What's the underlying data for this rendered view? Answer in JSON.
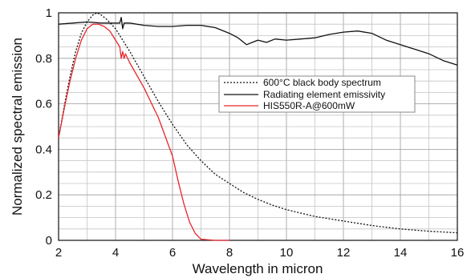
{
  "chart_data": {
    "type": "line",
    "xlabel": "Wavelength in micron",
    "ylabel": "Normalized spectral emission",
    "xlim": [
      2,
      16
    ],
    "ylim": [
      0,
      1
    ],
    "x_ticks": [
      2,
      4,
      6,
      8,
      10,
      12,
      14,
      16
    ],
    "y_ticks": [
      0,
      0.2,
      0.4,
      0.6,
      0.8,
      1
    ],
    "y_tick_labels": [
      "0",
      "0.2",
      "0.4",
      "0.6",
      "0.8",
      "1"
    ],
    "grid": true,
    "legend_position": "center-right",
    "series": [
      {
        "name": "600°C black body spectrum",
        "style": "dotted",
        "color": "#111111",
        "points": [
          [
            2,
            0.45
          ],
          [
            2.2,
            0.59
          ],
          [
            2.4,
            0.72
          ],
          [
            2.6,
            0.83
          ],
          [
            2.8,
            0.91
          ],
          [
            3.0,
            0.96
          ],
          [
            3.2,
            0.99
          ],
          [
            3.35,
            1.0
          ],
          [
            3.5,
            0.99
          ],
          [
            3.7,
            0.97
          ],
          [
            4.0,
            0.93
          ],
          [
            4.2,
            0.89
          ],
          [
            4.5,
            0.83
          ],
          [
            5.0,
            0.72
          ],
          [
            5.5,
            0.61
          ],
          [
            6.0,
            0.51
          ],
          [
            6.5,
            0.42
          ],
          [
            7.0,
            0.35
          ],
          [
            7.5,
            0.29
          ],
          [
            8.0,
            0.25
          ],
          [
            8.5,
            0.21
          ],
          [
            9.0,
            0.18
          ],
          [
            9.5,
            0.155
          ],
          [
            10.0,
            0.135
          ],
          [
            11.0,
            0.105
          ],
          [
            12.0,
            0.085
          ],
          [
            13.0,
            0.065
          ],
          [
            14.0,
            0.05
          ],
          [
            15.0,
            0.04
          ],
          [
            16.0,
            0.033
          ]
        ]
      },
      {
        "name": "Radiating element emissivity",
        "style": "solid",
        "color": "#111111",
        "points": [
          [
            2,
            0.95
          ],
          [
            2.5,
            0.955
          ],
          [
            3.0,
            0.96
          ],
          [
            3.5,
            0.955
          ],
          [
            4.0,
            0.955
          ],
          [
            4.15,
            0.955
          ],
          [
            4.2,
            0.98
          ],
          [
            4.25,
            0.93
          ],
          [
            4.3,
            0.955
          ],
          [
            4.5,
            0.955
          ],
          [
            5.0,
            0.945
          ],
          [
            5.5,
            0.94
          ],
          [
            6.0,
            0.94
          ],
          [
            6.5,
            0.945
          ],
          [
            7.0,
            0.945
          ],
          [
            7.5,
            0.935
          ],
          [
            8.0,
            0.91
          ],
          [
            8.3,
            0.89
          ],
          [
            8.6,
            0.86
          ],
          [
            8.8,
            0.87
          ],
          [
            9.0,
            0.88
          ],
          [
            9.3,
            0.87
          ],
          [
            9.6,
            0.885
          ],
          [
            10.0,
            0.88
          ],
          [
            10.5,
            0.885
          ],
          [
            11.0,
            0.89
          ],
          [
            11.5,
            0.905
          ],
          [
            12.0,
            0.915
          ],
          [
            12.5,
            0.92
          ],
          [
            13.0,
            0.91
          ],
          [
            13.5,
            0.88
          ],
          [
            14.0,
            0.86
          ],
          [
            14.5,
            0.84
          ],
          [
            15.0,
            0.82
          ],
          [
            15.5,
            0.79
          ],
          [
            16.0,
            0.77
          ]
        ]
      },
      {
        "name": "HIS550R-A@600mW",
        "style": "solid",
        "color": "#e8262c",
        "points": [
          [
            2,
            0.45
          ],
          [
            2.2,
            0.58
          ],
          [
            2.4,
            0.7
          ],
          [
            2.6,
            0.8
          ],
          [
            2.8,
            0.88
          ],
          [
            3.0,
            0.93
          ],
          [
            3.2,
            0.95
          ],
          [
            3.4,
            0.95
          ],
          [
            3.6,
            0.94
          ],
          [
            3.8,
            0.92
          ],
          [
            4.0,
            0.88
          ],
          [
            4.15,
            0.85
          ],
          [
            4.2,
            0.8
          ],
          [
            4.25,
            0.83
          ],
          [
            4.3,
            0.8
          ],
          [
            4.35,
            0.82
          ],
          [
            4.5,
            0.78
          ],
          [
            5.0,
            0.67
          ],
          [
            5.5,
            0.54
          ],
          [
            6.0,
            0.37
          ],
          [
            6.2,
            0.26
          ],
          [
            6.4,
            0.16
          ],
          [
            6.6,
            0.08
          ],
          [
            6.8,
            0.03
          ],
          [
            7.0,
            0.005
          ],
          [
            7.5,
            0.0
          ],
          [
            8.0,
            0.0
          ]
        ]
      }
    ]
  }
}
